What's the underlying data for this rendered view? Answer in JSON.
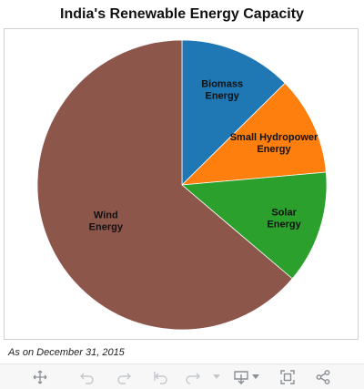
{
  "chart_data": {
    "type": "pie",
    "title": "India's Renewable Energy Capacity",
    "categories": [
      "Biomass Energy",
      "Small Hydropower Energy",
      "Solar Energy",
      "Wind Energy"
    ],
    "values": [
      12.6,
      11.0,
      12.6,
      63.8
    ],
    "colors": [
      "#1f77b4",
      "#ff7f0e",
      "#2ca02c",
      "#8c564b"
    ],
    "start_angle": "12 o'clock, clockwise",
    "slice_labels": [
      {
        "line1": "Biomass",
        "line2": "Energy"
      },
      {
        "line1": "Small Hydropower",
        "line2": "Energy"
      },
      {
        "line1": "Solar",
        "line2": "Energy"
      },
      {
        "line1": "Wind",
        "line2": "Energy"
      }
    ]
  },
  "footnote": "As on December 31, 2015",
  "toolbar": {
    "icons": [
      "move-icon",
      "undo-icon",
      "redo-icon",
      "reset-icon",
      "forward-icon",
      "dropdown-icon",
      "download-icon",
      "dropdown-icon",
      "fullscreen-icon",
      "share-icon"
    ]
  }
}
